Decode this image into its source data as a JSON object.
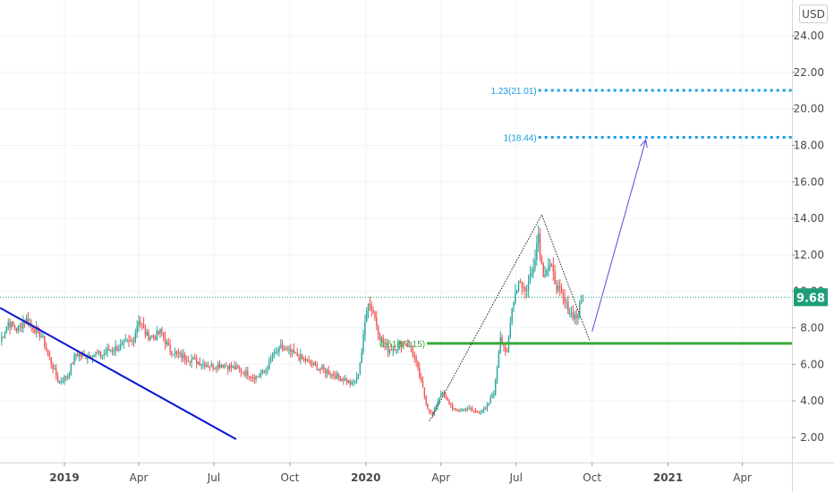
{
  "chart_data": {
    "type": "candlestick",
    "currency": "USD",
    "current_price": "9.68",
    "ylim": [
      1.0,
      26.0
    ],
    "y_ticks": [
      "24.00",
      "22.00",
      "20.00",
      "18.00",
      "16.00",
      "14.00",
      "12.00",
      "10.00",
      "8.00",
      "6.00",
      "4.00",
      "2.00"
    ],
    "y_tick_values": [
      24,
      22,
      20,
      18,
      16,
      14,
      12,
      10,
      8,
      6,
      4,
      2
    ],
    "x_ticks": [
      "2019",
      "Apr",
      "Jul",
      "Oct",
      "2020",
      "Apr",
      "Jul",
      "Oct",
      "2021",
      "Apr"
    ],
    "x_tick_dates": [
      "2019-01-01",
      "2019-04-01",
      "2019-07-01",
      "2019-10-01",
      "2020-01-01",
      "2020-04-01",
      "2020-07-01",
      "2020-10-01",
      "2021-01-01",
      "2021-04-01"
    ],
    "x_range": [
      "2018-10-15",
      "2021-05-31"
    ],
    "price_series": [
      [
        "2018-10-15",
        7.3
      ],
      [
        "2018-10-25",
        8.3
      ],
      [
        "2018-11-05",
        7.9
      ],
      [
        "2018-11-15",
        8.5
      ],
      [
        "2018-11-25",
        8.0
      ],
      [
        "2018-12-05",
        7.5
      ],
      [
        "2018-12-15",
        6.2
      ],
      [
        "2018-12-25",
        5.0
      ],
      [
        "2019-01-05",
        5.4
      ],
      [
        "2019-01-15",
        6.6
      ],
      [
        "2019-01-25",
        6.4
      ],
      [
        "2019-02-05",
        6.6
      ],
      [
        "2019-02-15",
        6.5
      ],
      [
        "2019-02-25",
        6.8
      ],
      [
        "2019-03-05",
        6.9
      ],
      [
        "2019-03-15",
        7.1
      ],
      [
        "2019-03-25",
        7.3
      ],
      [
        "2019-04-01",
        8.5
      ],
      [
        "2019-04-10",
        7.6
      ],
      [
        "2019-04-20",
        7.5
      ],
      [
        "2019-04-28",
        7.8
      ],
      [
        "2019-05-08",
        6.8
      ],
      [
        "2019-05-20",
        6.5
      ],
      [
        "2019-06-01",
        6.3
      ],
      [
        "2019-06-15",
        6.1
      ],
      [
        "2019-06-28",
        5.9
      ],
      [
        "2019-07-10",
        6.0
      ],
      [
        "2019-07-25",
        5.8
      ],
      [
        "2019-08-05",
        5.6
      ],
      [
        "2019-08-20",
        5.3
      ],
      [
        "2019-09-01",
        5.6
      ],
      [
        "2019-09-10",
        6.4
      ],
      [
        "2019-09-20",
        6.9
      ],
      [
        "2019-10-05",
        6.6
      ],
      [
        "2019-10-20",
        6.2
      ],
      [
        "2019-11-05",
        5.8
      ],
      [
        "2019-11-20",
        5.5
      ],
      [
        "2019-12-05",
        5.2
      ],
      [
        "2019-12-15",
        4.9
      ],
      [
        "2019-12-22",
        5.3
      ],
      [
        "2019-12-28",
        7.0
      ],
      [
        "2020-01-03",
        9.6
      ],
      [
        "2020-01-10",
        8.9
      ],
      [
        "2020-01-18",
        7.5
      ],
      [
        "2020-01-28",
        6.8
      ],
      [
        "2020-02-08",
        7.0
      ],
      [
        "2020-02-18",
        7.3
      ],
      [
        "2020-02-28",
        6.5
      ],
      [
        "2020-03-08",
        5.0
      ],
      [
        "2020-03-16",
        3.6
      ],
      [
        "2020-03-22",
        3.2
      ],
      [
        "2020-04-01",
        4.5
      ],
      [
        "2020-04-10",
        3.9
      ],
      [
        "2020-04-20",
        3.4
      ],
      [
        "2020-05-01",
        3.6
      ],
      [
        "2020-05-15",
        3.4
      ],
      [
        "2020-05-25",
        3.5
      ],
      [
        "2020-06-05",
        4.6
      ],
      [
        "2020-06-12",
        7.6
      ],
      [
        "2020-06-20",
        6.5
      ],
      [
        "2020-06-27",
        9.5
      ],
      [
        "2020-07-05",
        10.7
      ],
      [
        "2020-07-12",
        10.0
      ],
      [
        "2020-07-20",
        11.0
      ],
      [
        "2020-07-28",
        13.2
      ],
      [
        "2020-08-02",
        11.0
      ],
      [
        "2020-08-10",
        11.5
      ],
      [
        "2020-08-20",
        10.2
      ],
      [
        "2020-08-28",
        9.4
      ],
      [
        "2020-09-05",
        8.8
      ],
      [
        "2020-09-12",
        8.6
      ],
      [
        "2020-09-20",
        9.68
      ]
    ],
    "annotations": {
      "fib_levels": [
        {
          "label": "1.23(21.01)",
          "value": 21.01,
          "from": "2020-07-28"
        },
        {
          "label": "1(18.44)",
          "value": 18.44,
          "from": "2020-07-28"
        },
        {
          "label": "0.618(7.15)",
          "value": 7.15,
          "from": "2020-03-15"
        }
      ],
      "support_line": {
        "value": 7.15,
        "from": "2020-03-15",
        "to": "2021-05-31"
      },
      "current_price_line": {
        "value": 9.68
      },
      "triangle": [
        [
          "2020-03-18",
          2.9
        ],
        [
          "2020-08-01",
          14.2
        ],
        [
          "2020-09-28",
          7.3
        ]
      ],
      "trendline": [
        [
          "2018-10-15",
          9.1
        ],
        [
          "2019-07-28",
          1.9
        ]
      ],
      "projection_arrow": [
        [
          "2020-10-01",
          7.8
        ],
        [
          "2020-12-05",
          18.3
        ]
      ]
    },
    "colors": {
      "up": "#26a69a",
      "down": "#ef5350",
      "fib": "#1a9ee0",
      "support": "#3aaa3a",
      "trendline": "#0a16d1",
      "projection": "#5a4bd8",
      "current_price": "#1e9e78"
    }
  }
}
